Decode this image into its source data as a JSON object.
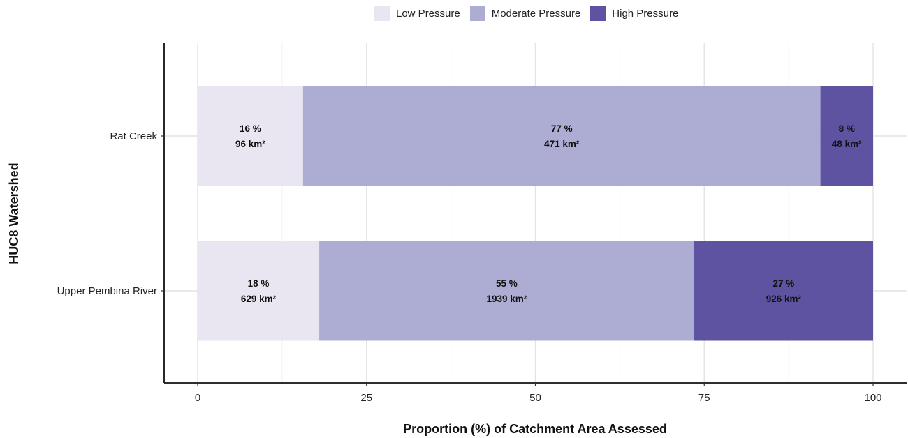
{
  "chart_data": {
    "type": "bar",
    "orientation": "horizontal",
    "stacked": true,
    "xlabel": "Proportion (%) of Catchment Area Assessed",
    "ylabel": "HUC8 Watershed",
    "xlim": [
      -5,
      105
    ],
    "xticks": [
      0,
      25,
      50,
      75,
      100
    ],
    "grid": true,
    "legend_position": "top",
    "categories": [
      "Rat Creek",
      "Upper Pembina River"
    ],
    "series": [
      {
        "name": "Low Pressure",
        "color": "#e9e6f1",
        "values": [
          15.6,
          18.0
        ],
        "labels": [
          [
            "16 %",
            "96 km²"
          ],
          [
            "18 %",
            "629 km²"
          ]
        ]
      },
      {
        "name": "Moderate Pressure",
        "color": "#adadd3",
        "values": [
          76.6,
          55.5
        ],
        "labels": [
          [
            "77 %",
            "471 km²"
          ],
          [
            "55 %",
            "1939 km²"
          ]
        ]
      },
      {
        "name": "High Pressure",
        "color": "#5e53a0",
        "values": [
          7.8,
          26.5
        ],
        "labels": [
          [
            "8 %",
            "48 km²"
          ],
          [
            "27 %",
            "926 km²"
          ]
        ]
      }
    ]
  }
}
